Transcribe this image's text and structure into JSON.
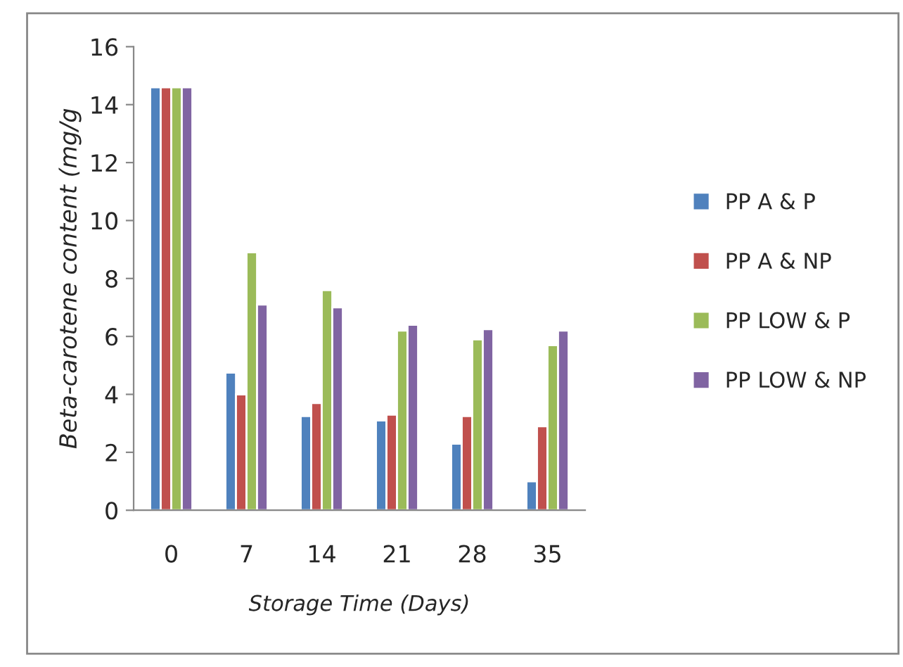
{
  "chart_data": {
    "type": "bar",
    "xlabel": "Storage Time (Days)",
    "ylabel": "Beta-carotene content (mg/g",
    "categories": [
      "0",
      "7",
      "14",
      "21",
      "28",
      "35"
    ],
    "series": [
      {
        "name": "PP A & P",
        "color": "#4f81bd",
        "values": [
          14.6,
          4.75,
          3.25,
          3.1,
          2.3,
          1.0
        ]
      },
      {
        "name": "PP A & NP",
        "color": "#c0504d",
        "values": [
          14.6,
          4.0,
          3.7,
          3.3,
          3.25,
          2.9
        ]
      },
      {
        "name": "PP LOW & P",
        "color": "#9bbb59",
        "values": [
          14.6,
          8.9,
          7.6,
          6.2,
          5.9,
          5.7
        ]
      },
      {
        "name": "PP LOW & NP",
        "color": "#8064a2",
        "values": [
          14.6,
          7.1,
          7.0,
          6.4,
          6.25,
          6.2
        ]
      }
    ],
    "ylim": [
      0,
      16
    ],
    "yticks": [
      0,
      2,
      4,
      6,
      8,
      10,
      12,
      14,
      16
    ],
    "grid": false,
    "legend": "right"
  }
}
